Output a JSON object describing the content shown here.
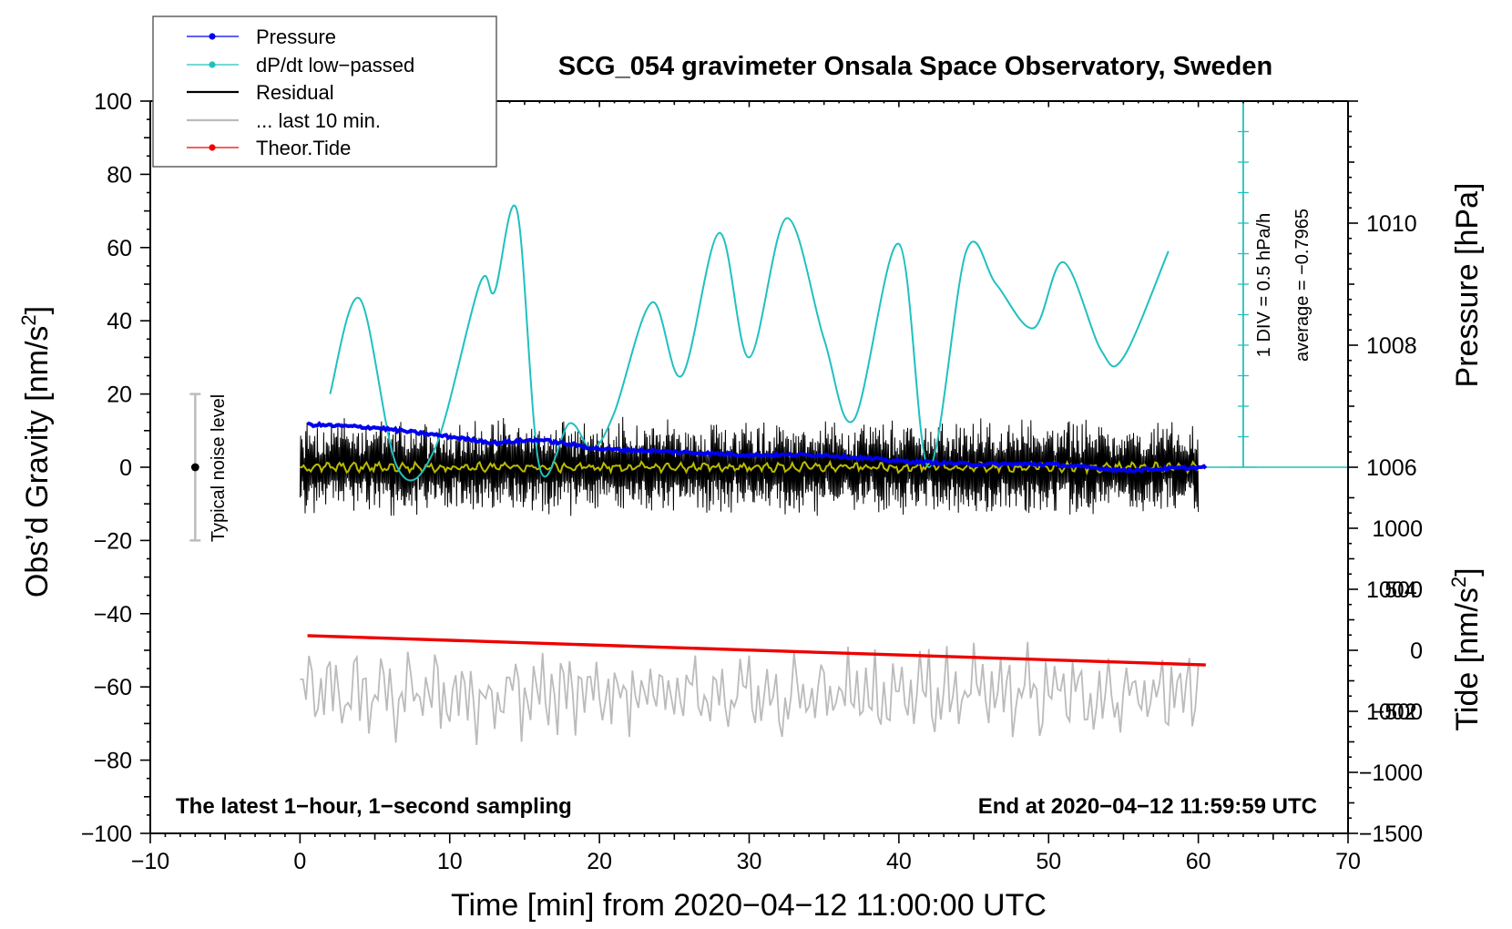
{
  "chart_data": {
    "type": "line",
    "title": "SCG_054 gravimeter Onsala Space Observatory, Sweden",
    "xlabel": "Time [min] from 2020−04−12 11:00:00 UTC",
    "ylabel_left_main": "Obs’d Gravity [nm/s",
    "ylabel_left_sup": "2",
    "ylabel_left_end": "]",
    "ylabel_right_pressure": "Pressure [hPa]",
    "ylabel_right_tide_main": "Tide [nm/s",
    "ylabel_right_tide_sup": "2",
    "ylabel_right_tide_end": "]",
    "xlim": [
      -10,
      70
    ],
    "ylim": [
      -100,
      100
    ],
    "pressure_lim": [
      1000,
      1012
    ],
    "tide_lim": [
      -1500,
      4500
    ],
    "x_ticks": [
      "−10",
      "0",
      "10",
      "20",
      "30",
      "40",
      "50",
      "60",
      "70"
    ],
    "x_tick_values": [
      -10,
      0,
      10,
      20,
      30,
      40,
      50,
      60,
      70
    ],
    "y_ticks": [
      "100",
      "80",
      "60",
      "40",
      "20",
      "0",
      "−20",
      "−40",
      "−60",
      "−80",
      "−100"
    ],
    "y_tick_values": [
      100,
      80,
      60,
      40,
      20,
      0,
      -20,
      -40,
      -60,
      -80,
      -100
    ],
    "pressure_ticks": [
      "1010",
      "1008",
      "1006",
      "1004",
      "1002"
    ],
    "pressure_tick_values": [
      1010,
      1008,
      1006,
      1004,
      1002
    ],
    "tide_ticks": [
      "1000",
      "500",
      "0",
      "−500",
      "−1000",
      "−1500"
    ],
    "tide_tick_values": [
      1000,
      500,
      0,
      -500,
      -1000,
      -1500
    ],
    "legend": [
      {
        "label": "Pressure",
        "color": "#0000ee",
        "marker": true
      },
      {
        "label": "dP/dt low−passed",
        "color": "#20c0c0",
        "marker": true
      },
      {
        "label": "Residual",
        "color": "#000000",
        "marker": false
      },
      {
        "label": "... last 10 min.",
        "color": "#bbbbbb",
        "marker": false
      },
      {
        "label": "Theor.Tide",
        "color": "#ee0000",
        "marker": true
      }
    ],
    "series": [
      {
        "name": "Pressure",
        "color": "#0000ee",
        "axis": "pressure",
        "x": [
          0.5,
          5,
          10,
          13,
          16,
          20,
          25,
          30,
          35,
          40,
          45,
          50,
          55,
          60.5
        ],
        "y": [
          1006.7,
          1006.65,
          1006.5,
          1006.4,
          1006.45,
          1006.3,
          1006.25,
          1006.2,
          1006.2,
          1006.1,
          1006.05,
          1006.05,
          1005.95,
          1006.0
        ]
      },
      {
        "name": "dP/dt low−passed",
        "color": "#20c0c0",
        "axis": "gravity",
        "x": [
          2,
          4,
          6.5,
          9,
          12,
          13,
          14.5,
          16,
          18,
          19.5,
          21,
          23.5,
          25.5,
          28,
          30,
          32.5,
          35,
          37,
          40,
          42,
          44.5,
          46.5,
          49,
          51,
          53.5,
          55,
          58
        ],
        "y": [
          20,
          46,
          0,
          5,
          50,
          48,
          70,
          0,
          12,
          5,
          15,
          45,
          25,
          64,
          30,
          68,
          35,
          13,
          61,
          0,
          59,
          50,
          38,
          56,
          32,
          30,
          59
        ]
      },
      {
        "name": "Residual",
        "color": "#000000",
        "axis": "gravity",
        "x_range": [
          0,
          60
        ],
        "y_center": 0,
        "amplitude": 14
      },
      {
        "name": "Residual smoothed",
        "color": "#bbbb00",
        "axis": "gravity",
        "x_range": [
          0,
          60
        ],
        "y_center": 0,
        "amplitude": 1.5
      },
      {
        "name": "... last 10 min.",
        "color": "#bbbbbb",
        "axis": "gravity",
        "x_range": [
          0,
          60
        ],
        "y_center": -62,
        "amplitude": 14
      },
      {
        "name": "Theor.Tide",
        "color": "#ee0000",
        "axis": "tide",
        "x": [
          0.5,
          60.5
        ],
        "y": [
          120,
          -120
        ]
      }
    ],
    "reference_line": {
      "axis": "pressure",
      "value": 1006,
      "color": "#20c0c0"
    },
    "noise_bar": {
      "x": -7,
      "y_low": -20,
      "y_high": 20,
      "label": "Typical noise level"
    },
    "scale_bar": {
      "x": 63,
      "y_low": 0,
      "y_high": 100,
      "label_div": "1 DIV = 0.5 hPa/h",
      "label_average": "average = −0.7965"
    },
    "annotations": {
      "bottom_left": "The latest 1−hour, 1−second sampling",
      "bottom_right": "End at 2020−04−12 11:59:59 UTC"
    }
  }
}
